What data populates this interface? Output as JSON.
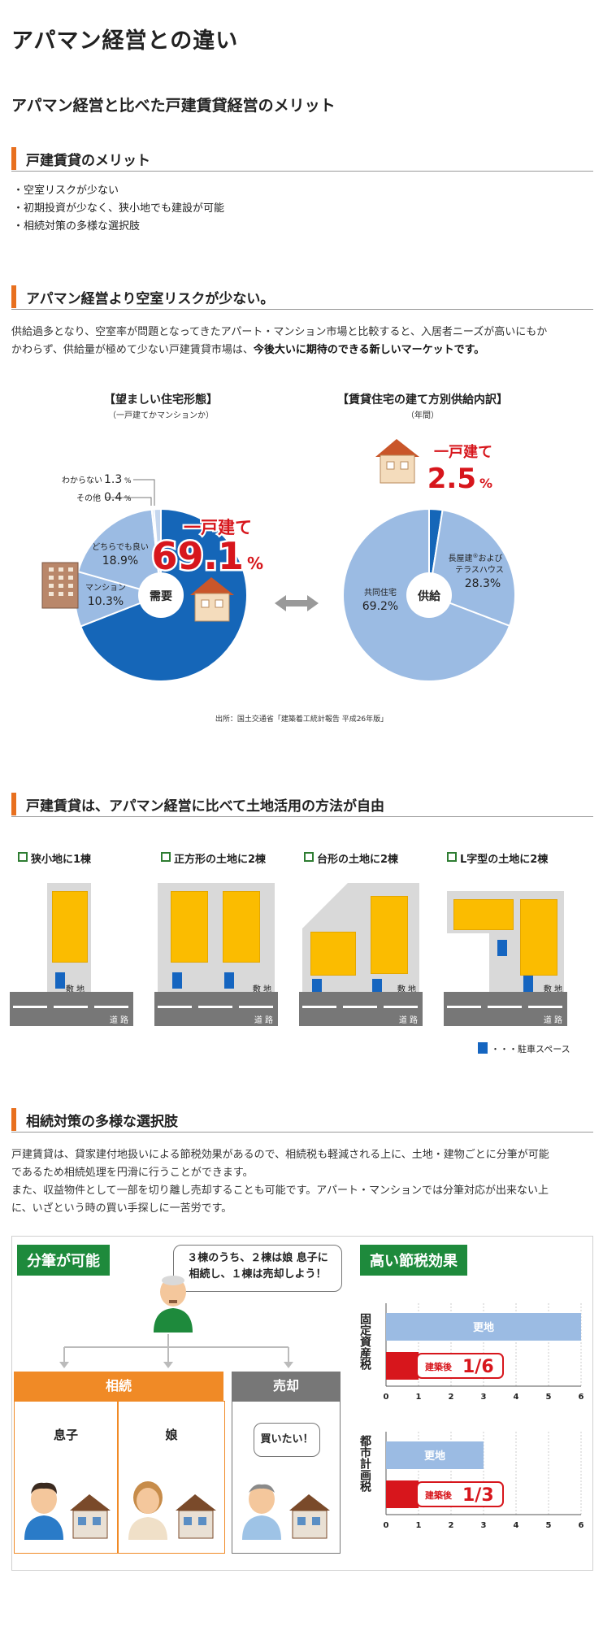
{
  "page_title": "アパマン経営との違い",
  "subtitle": "アパマン経営と比べた戸建賃貸経営のメリット",
  "merits": {
    "heading": "戸建賃貸のメリット",
    "items": [
      "・空室リスクが少ない",
      "・初期投資が少なく、狭小地でも建設が可能",
      "・相続対策の多様な選択肢"
    ]
  },
  "vacancy": {
    "heading": "アパマン経営より空室リスクが少ない。",
    "para_1": "供給過多となり、空室率が問題となってきたアパート・マンション市場と比較すると、入居者ニーズが高いにもか",
    "para_2a": "かわらず、供給量が極めて少ない戸建賃貸市場は、",
    "para_2b": "今後大いに期待のできる新しいマーケットです。"
  },
  "chart_demand": {
    "title": "【望ましい住宅形態】",
    "sub": "（一戸建てかマンションか）",
    "center": "需要",
    "labels": {
      "unknown": "わからない",
      "unknown_val": "1.3",
      "other": "その他",
      "other_val": "0.4",
      "either": "どちらでも良い",
      "either_val": "18.9%",
      "mansion": "マンション",
      "mansion_val": "10.3%",
      "house": "一戸建て",
      "house_val": "69.1",
      "pct": "%"
    }
  },
  "chart_supply": {
    "title": "【賃貸住宅の建て方別供給内訳】",
    "sub": "（年間）",
    "center": "供給",
    "labels": {
      "house": "一戸建て",
      "house_val": "2.5",
      "pct": "%",
      "nagaya_1": "長屋建",
      "nagaya_2": "およびテラスハウス",
      "nagaya_val": "28.3%",
      "kyodo": "共同住宅",
      "kyodo_val": "69.2%"
    }
  },
  "chart_data": [
    {
      "type": "pie",
      "title": "【望ましい住宅形態】",
      "subtitle": "（一戸建てかマンションか）",
      "categories": [
        "一戸建て",
        "マンション",
        "どちらでも良い",
        "その他",
        "わからない"
      ],
      "values": [
        69.1,
        10.3,
        18.9,
        0.4,
        1.3
      ],
      "colors": [
        "#1566b8",
        "#9bbbe3",
        "#9bbbe3",
        "#c4d6ee",
        "#c4d6ee"
      ]
    },
    {
      "type": "pie",
      "title": "【賃貸住宅の建て方別供給内訳】",
      "subtitle": "（年間）",
      "categories": [
        "一戸建て",
        "長屋建およびテラスハウス",
        "共同住宅"
      ],
      "values": [
        2.5,
        28.3,
        69.2
      ],
      "colors": [
        "#1566b8",
        "#9bbbe3",
        "#9bbbe3"
      ]
    }
  ],
  "source": "出所：国土交通省「建築着工統計報告 平成26年版」",
  "land": {
    "heading": "戸建賃貸は、アパマン経営に比べて土地活用の方法が自由",
    "lots": [
      {
        "label": "狭小地に1棟"
      },
      {
        "label": "正方形の土地に2棟"
      },
      {
        "label": "台形の土地に2棟"
      },
      {
        "label": "L字型の土地に2棟"
      }
    ],
    "site": "敷 地",
    "road": "道 路",
    "legend": "・・・駐車スペース"
  },
  "inherit": {
    "heading": "相続対策の多様な選択肢",
    "para_1": "戸建賃貸は、貸家建付地扱いによる節税効果があるので、相続税も軽減される上に、土地・建物ごとに分筆が可能",
    "para_2": "であるため相続処理を円滑に行うことができます。",
    "para_3": "また、収益物件として一部を切り離し売却することも可能です。アパート・マンションでは分筆対応が出来ない上",
    "para_4": "に、いざという時の買い手探しに一苦労です。"
  },
  "split": {
    "label": "分筆が可能",
    "bubble_1": "３棟のうち、２棟は娘 息子に",
    "bubble_2": "相続し、１棟は売却しよう！",
    "inherit_hdr": "相続",
    "sell_hdr": "売却",
    "son": "息子",
    "daughter": "娘",
    "buyer_bubble": "買いたい！"
  },
  "tax": {
    "label": "高い節税効果",
    "chart1_title": "固定資産税",
    "chart2_title": "都市計画税",
    "bar_label": "更地",
    "after_label": "建築後",
    "ratio1": "1/6",
    "ratio2": "1/3",
    "ticks": [
      "0",
      "1",
      "2",
      "3",
      "4",
      "5",
      "6"
    ]
  }
}
